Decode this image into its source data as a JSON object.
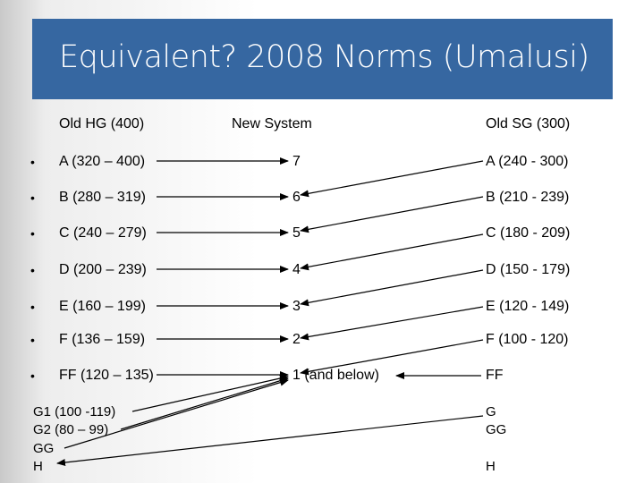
{
  "title": "Equivalent?  2008 Norms (Umalusi)",
  "headers": {
    "old_hg": "Old HG (400)",
    "new_system": "New System",
    "old_sg": "Old SG (300)"
  },
  "bullet": "•",
  "rows": [
    {
      "hg": "A (320 – 400)",
      "ns": "7",
      "sg": "A (240 - 300)"
    },
    {
      "hg": "B (280 – 319)",
      "ns": "6",
      "sg": "B (210 - 239)"
    },
    {
      "hg": "C (240 – 279)",
      "ns": "5",
      "sg": "C (180 - 209)"
    },
    {
      "hg": "D (200 – 239)",
      "ns": "4",
      "sg": "D (150 - 179)"
    },
    {
      "hg": "E  (160 – 199)",
      "ns": "3",
      "sg": "E (120 - 149)"
    },
    {
      "hg": "F  (136 – 159)",
      "ns": "2",
      "sg": "F (100 - 120)"
    },
    {
      "hg": "FF (120 – 135)",
      "ns": "1 (and below)",
      "sg": "FF"
    }
  ],
  "extra_hg": [
    "G1 (100 -119)",
    "G2 (80 – 99)",
    "GG",
    "H"
  ],
  "extra_sg": [
    "G",
    "GG",
    "H"
  ]
}
